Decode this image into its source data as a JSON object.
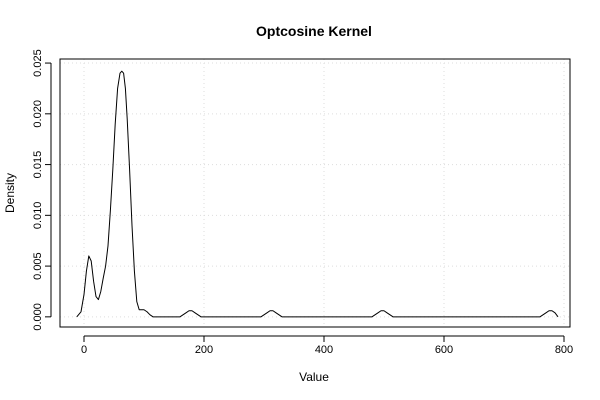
{
  "chart_data": {
    "type": "line",
    "title": "Optcosine Kernel",
    "xlabel": "Value",
    "ylabel": "Density",
    "xlim": [
      -40,
      810
    ],
    "ylim": [
      -0.001,
      0.0254
    ],
    "xticks": [
      0,
      200,
      400,
      600,
      800
    ],
    "xtick_labels": [
      "0",
      "200",
      "400",
      "600",
      "800"
    ],
    "yticks": [
      0,
      0.005,
      0.01,
      0.015,
      0.02,
      0.025
    ],
    "ytick_labels": [
      "0.000",
      "0.005",
      "0.010",
      "0.015",
      "0.020",
      "0.025"
    ],
    "grid": true,
    "series": [
      {
        "color": "#000000",
        "x": [
          -12,
          -5,
          0,
          4,
          8,
          12,
          16,
          20,
          24,
          28,
          32,
          36,
          40,
          44,
          48,
          52,
          56,
          60,
          63,
          66,
          69,
          72,
          76,
          80,
          84,
          88,
          92,
          96,
          100,
          105,
          110,
          115,
          120,
          140,
          160,
          165,
          170,
          175,
          180,
          185,
          190,
          195,
          200,
          250,
          295,
          300,
          305,
          310,
          315,
          320,
          325,
          330,
          400,
          480,
          485,
          490,
          495,
          500,
          505,
          510,
          515,
          600,
          700,
          760,
          765,
          770,
          775,
          780,
          785,
          790
        ],
        "y": [
          0,
          0.0005,
          0.0022,
          0.0045,
          0.006,
          0.0055,
          0.0035,
          0.002,
          0.0017,
          0.0025,
          0.0038,
          0.005,
          0.007,
          0.0105,
          0.0145,
          0.019,
          0.0225,
          0.024,
          0.0242,
          0.024,
          0.0225,
          0.0195,
          0.0145,
          0.009,
          0.0045,
          0.0015,
          0.0007,
          0.0007,
          0.0007,
          0.0005,
          0.0002,
          0,
          0,
          0,
          0,
          0.0002,
          0.0004,
          0.0006,
          0.0006,
          0.0004,
          0.0002,
          0,
          0,
          0,
          0,
          0.0002,
          0.0004,
          0.0006,
          0.0006,
          0.0004,
          0.0002,
          0,
          0,
          0,
          0.0002,
          0.0004,
          0.0006,
          0.0006,
          0.0004,
          0.0002,
          0,
          0,
          0,
          0,
          0.0002,
          0.0004,
          0.0006,
          0.0006,
          0.0004,
          0
        ]
      }
    ]
  }
}
